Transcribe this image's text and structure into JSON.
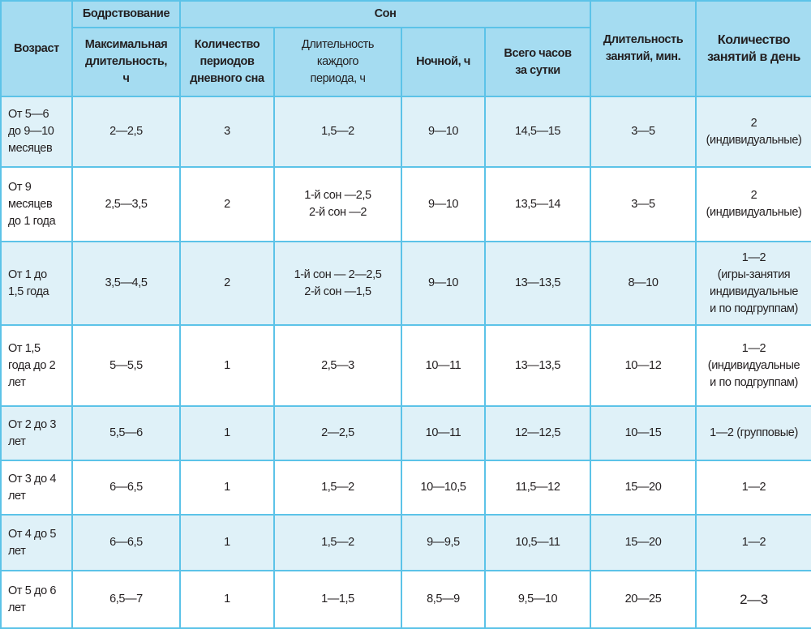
{
  "header": {
    "age": "Возраст",
    "wake_group": "Бодрствование",
    "sleep_group": "Сон",
    "max_duration": "Максимальная\nдлительность,\nч",
    "day_naps_count": "Количество\nпериодов\nдневного сна",
    "period_duration": "Длительность\nкаждого\nпериода, ч",
    "night": "Ночной, ч",
    "total": "Всего часов\nза сутки",
    "lesson_duration": "Длительность\nзанятий, мин.",
    "lessons_per_day": "Количество\nзанятий в день"
  },
  "rows": [
    [
      "От 5—6\nдо 9—10\nмесяцев",
      "2—2,5",
      "3",
      "1,5—2",
      "9—10",
      "14,5—15",
      "3—5",
      "2\n(индивидуальные)"
    ],
    [
      "От 9\nмесяцев\nдо 1 года",
      "2,5—3,5",
      "2",
      "1-й сон —2,5\n2-й сон —2",
      "9—10",
      "13,5—14",
      "3—5",
      "2\n(индивидуальные)"
    ],
    [
      "От 1 до\n1,5 года",
      "3,5—4,5",
      "2",
      "1-й сон — 2—2,5\n2-й сон —1,5",
      "9—10",
      "13—13,5",
      "8—10",
      "1—2\n(игры-занятия\nиндивидуальные\nи по подгруппам)"
    ],
    [
      "От 1,5\nгода до 2\nлет",
      "5—5,5",
      "1",
      "2,5—3",
      "10—11",
      "13—13,5",
      "10—12",
      "1—2\n(индивидуальные\nи по подгруппам)"
    ],
    [
      "От 2 до 3\nлет",
      "5,5—6",
      "1",
      "2—2,5",
      "10—11",
      "12—12,5",
      "10—15",
      "1—2 (групповые)"
    ],
    [
      "От 3 до 4\nлет",
      "6—6,5",
      "1",
      "1,5—2",
      "10—10,5",
      "11,5—12",
      "15—20",
      "1—2"
    ],
    [
      "От 4 до 5\nлет",
      "6—6,5",
      "1",
      "1,5—2",
      "9—9,5",
      "10,5—11",
      "15—20",
      "1—2"
    ],
    [
      "От 5 до 6\nлет",
      "6,5—7",
      "1",
      "1—1,5",
      "8,5—9",
      "9,5—10",
      "20—25",
      "2—3"
    ]
  ],
  "colors": {
    "border": "#5cc3e8",
    "header_bg": "#a5dcf1",
    "stripe_bg": "#dff1f8"
  }
}
